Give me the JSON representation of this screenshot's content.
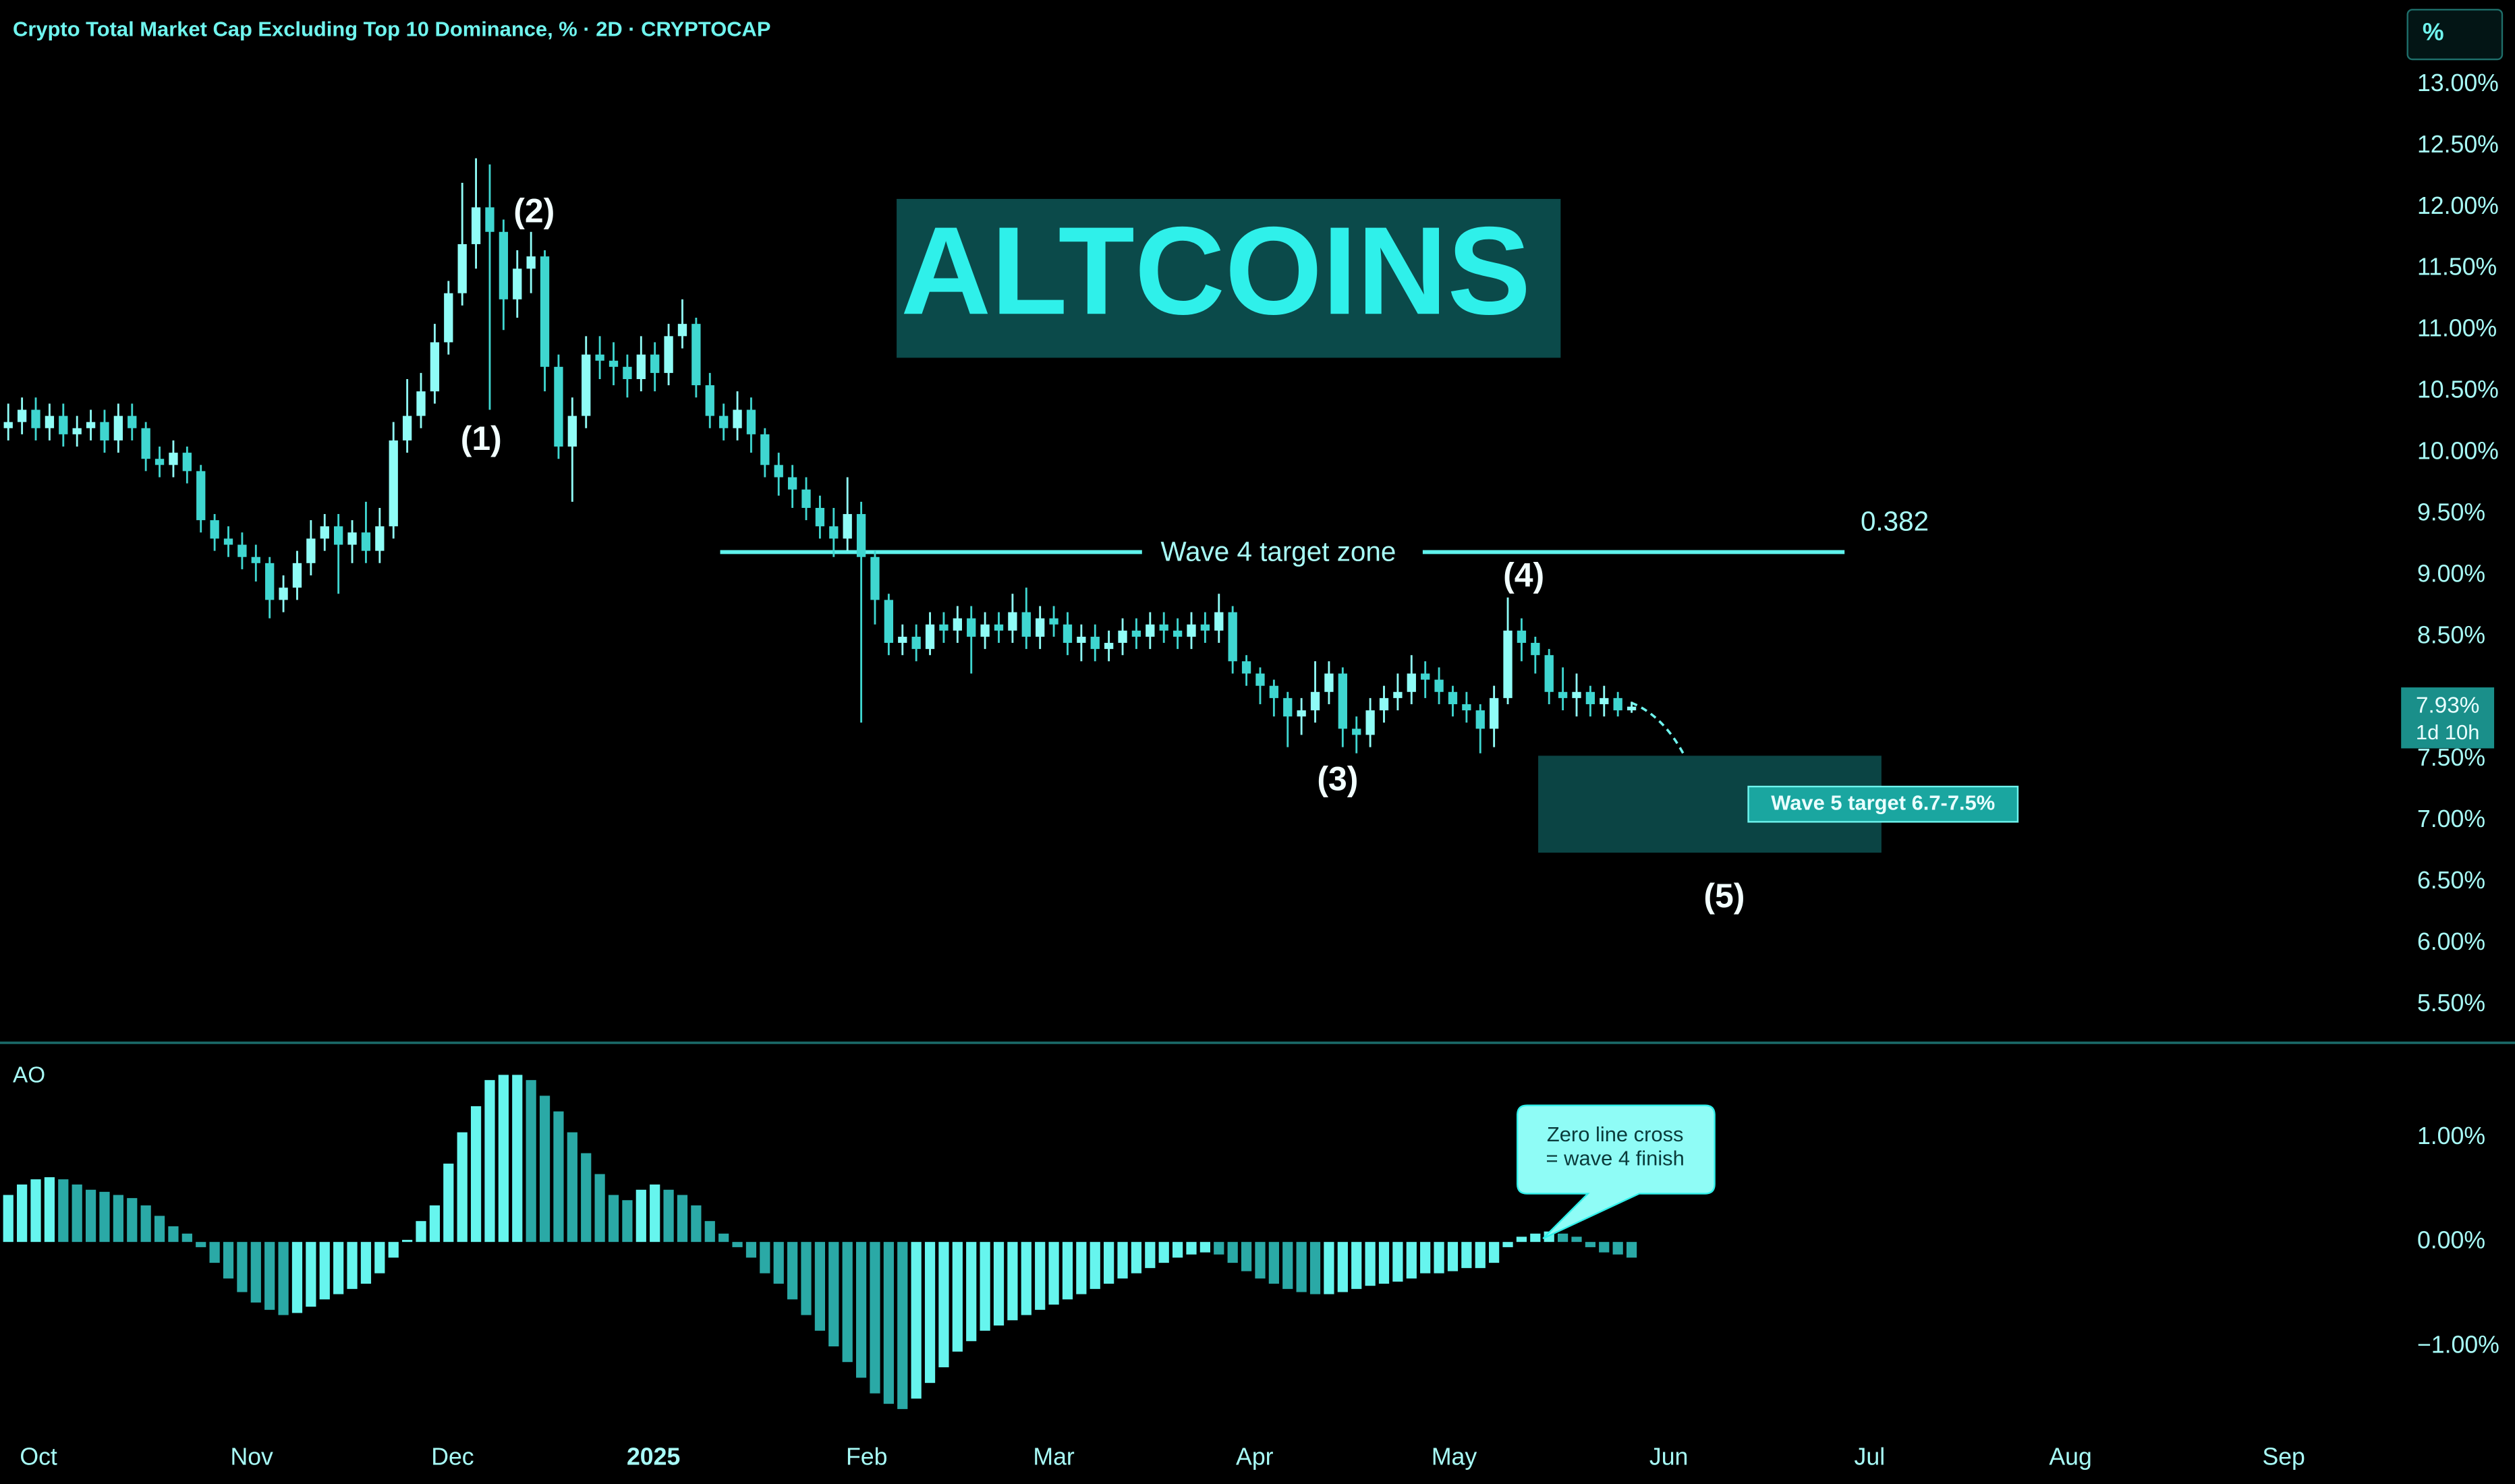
{
  "chart_data": [
    {
      "type": "candlestick",
      "title": "Crypto Total Market Cap Excluding Top 10 Dominance, % · 2D · CRYPTOCAP",
      "axis_unit": "%",
      "open": [
        10.2,
        10.25,
        10.35,
        10.2,
        10.3,
        10.15,
        10.2,
        10.25,
        10.1,
        10.3,
        10.2,
        9.95,
        9.9,
        10.0,
        9.85,
        9.45,
        9.3,
        9.25,
        9.15,
        9.1,
        8.8,
        8.9,
        9.1,
        9.3,
        9.4,
        9.25,
        9.35,
        9.2,
        9.4,
        10.1,
        10.3,
        10.5,
        10.9,
        11.3,
        11.7,
        12.0,
        11.8,
        11.25,
        11.5,
        11.6,
        10.7,
        10.05,
        10.3,
        10.8,
        10.75,
        10.7,
        10.6,
        10.8,
        10.65,
        10.95,
        11.05,
        10.55,
        10.3,
        10.2,
        10.35,
        10.15,
        9.9,
        9.8,
        9.7,
        9.55,
        9.4,
        9.3,
        9.5,
        9.15,
        8.8,
        8.45,
        8.5,
        8.4,
        8.6,
        8.55,
        8.65,
        8.5,
        8.6,
        8.55,
        8.7,
        8.5,
        8.65,
        8.6,
        8.45,
        8.5,
        8.4,
        8.45,
        8.55,
        8.5,
        8.6,
        8.55,
        8.5,
        8.6,
        8.55,
        8.7,
        8.3,
        8.2,
        8.1,
        8.0,
        7.85,
        7.9,
        8.05,
        8.2,
        7.75,
        7.7,
        7.9,
        8.0,
        8.05,
        8.2,
        8.15,
        8.05,
        7.95,
        7.9,
        7.75,
        8.0,
        8.55,
        8.45,
        8.35,
        8.05,
        8.0,
        8.05,
        7.95,
        8.0,
        7.9
      ],
      "high": [
        10.4,
        10.45,
        10.45,
        10.4,
        10.4,
        10.3,
        10.35,
        10.35,
        10.4,
        10.4,
        10.25,
        10.05,
        10.1,
        10.05,
        9.9,
        9.5,
        9.4,
        9.35,
        9.25,
        9.15,
        9.0,
        9.2,
        9.45,
        9.5,
        9.5,
        9.45,
        9.6,
        9.55,
        10.25,
        10.6,
        10.65,
        11.05,
        11.4,
        12.2,
        12.4,
        12.35,
        11.9,
        11.65,
        11.8,
        11.65,
        10.8,
        10.45,
        10.95,
        10.95,
        10.9,
        10.8,
        10.95,
        10.9,
        11.05,
        11.25,
        11.1,
        10.65,
        10.4,
        10.5,
        10.45,
        10.2,
        10.0,
        9.9,
        9.8,
        9.65,
        9.55,
        9.8,
        9.6,
        9.2,
        8.85,
        8.6,
        8.6,
        8.7,
        8.7,
        8.75,
        8.75,
        8.7,
        8.7,
        8.85,
        8.9,
        8.75,
        8.75,
        8.7,
        8.6,
        8.6,
        8.55,
        8.65,
        8.65,
        8.7,
        8.7,
        8.65,
        8.7,
        8.7,
        8.85,
        8.75,
        8.35,
        8.25,
        8.15,
        8.05,
        8.0,
        8.3,
        8.3,
        8.25,
        7.85,
        8.0,
        8.1,
        8.2,
        8.35,
        8.3,
        8.25,
        8.1,
        8.05,
        7.95,
        8.1,
        8.82,
        8.65,
        8.5,
        8.4,
        8.25,
        8.2,
        8.1,
        8.1,
        8.05,
        7.97
      ],
      "low": [
        10.1,
        10.15,
        10.1,
        10.1,
        10.05,
        10.05,
        10.1,
        10.0,
        10.0,
        10.1,
        9.85,
        9.8,
        9.8,
        9.75,
        9.35,
        9.2,
        9.15,
        9.05,
        8.95,
        8.65,
        8.7,
        8.8,
        9.0,
        9.2,
        8.85,
        9.1,
        9.1,
        9.1,
        9.3,
        10.0,
        10.2,
        10.4,
        10.8,
        11.2,
        11.5,
        10.35,
        11.0,
        11.1,
        11.3,
        10.5,
        9.95,
        9.6,
        10.2,
        10.6,
        10.55,
        10.45,
        10.5,
        10.5,
        10.55,
        10.85,
        10.45,
        10.2,
        10.1,
        10.1,
        10.0,
        9.8,
        9.65,
        9.55,
        9.45,
        9.3,
        9.15,
        9.2,
        7.8,
        8.6,
        8.35,
        8.35,
        8.3,
        8.35,
        8.45,
        8.45,
        8.2,
        8.4,
        8.45,
        8.45,
        8.4,
        8.4,
        8.5,
        8.35,
        8.3,
        8.3,
        8.3,
        8.35,
        8.4,
        8.4,
        8.45,
        8.4,
        8.4,
        8.45,
        8.45,
        8.2,
        8.1,
        7.95,
        7.85,
        7.6,
        7.7,
        7.8,
        7.95,
        7.6,
        7.55,
        7.6,
        7.8,
        7.9,
        7.95,
        8.0,
        7.95,
        7.85,
        7.8,
        7.55,
        7.6,
        7.95,
        8.3,
        8.2,
        7.95,
        7.9,
        7.85,
        7.85,
        7.85,
        7.85,
        7.88
      ],
      "close": [
        10.25,
        10.35,
        10.2,
        10.3,
        10.15,
        10.2,
        10.25,
        10.1,
        10.3,
        10.2,
        9.95,
        9.9,
        10.0,
        9.85,
        9.45,
        9.3,
        9.25,
        9.15,
        9.1,
        8.8,
        8.9,
        9.1,
        9.3,
        9.4,
        9.25,
        9.35,
        9.2,
        9.4,
        10.1,
        10.3,
        10.5,
        10.9,
        11.3,
        11.7,
        12.0,
        11.8,
        11.25,
        11.5,
        11.6,
        10.7,
        10.05,
        10.3,
        10.8,
        10.75,
        10.7,
        10.6,
        10.8,
        10.65,
        10.95,
        11.05,
        10.55,
        10.3,
        10.2,
        10.35,
        10.15,
        9.9,
        9.8,
        9.7,
        9.55,
        9.4,
        9.3,
        9.5,
        9.15,
        8.8,
        8.45,
        8.5,
        8.4,
        8.6,
        8.55,
        8.65,
        8.5,
        8.6,
        8.55,
        8.7,
        8.5,
        8.65,
        8.6,
        8.45,
        8.5,
        8.4,
        8.45,
        8.55,
        8.5,
        8.6,
        8.55,
        8.5,
        8.6,
        8.55,
        8.7,
        8.3,
        8.2,
        8.1,
        8.0,
        7.85,
        7.9,
        8.05,
        8.2,
        7.75,
        7.7,
        7.9,
        8.0,
        8.05,
        8.2,
        8.15,
        8.05,
        7.95,
        7.9,
        7.75,
        8.0,
        8.55,
        8.45,
        8.35,
        8.05,
        8.0,
        8.05,
        7.95,
        8.0,
        7.9,
        7.93
      ],
      "up_color": "#8ffcf6",
      "down_color": "#3fd6d0",
      "xlim": [
        -0.6,
        173.7
      ],
      "ylim": [
        5.19,
        13.69
      ],
      "yticks": [
        {
          "value": 5.5,
          "label": "5.50%"
        },
        {
          "value": 6,
          "label": "6.00%"
        },
        {
          "value": 6.5,
          "label": "6.50%"
        },
        {
          "value": 7,
          "label": "7.00%"
        },
        {
          "value": 7.5,
          "label": "7.50%"
        },
        {
          "value": 8.5,
          "label": "8.50%"
        },
        {
          "value": 9,
          "label": "9.00%"
        },
        {
          "value": 9.5,
          "label": "9.50%"
        },
        {
          "value": 10,
          "label": "10.00%"
        },
        {
          "value": 10.5,
          "label": "10.50%"
        },
        {
          "value": 11,
          "label": "11.00%"
        },
        {
          "value": 11.5,
          "label": "11.50%"
        },
        {
          "value": 12,
          "label": "12.00%"
        },
        {
          "value": 12.5,
          "label": "12.50%"
        },
        {
          "value": 13,
          "label": "13.00%"
        }
      ],
      "price_label": {
        "value": 7.93,
        "label": "7.93%"
      },
      "countdown": "1d 10h",
      "headline": "ALTCOINS",
      "wave_labels": [
        "(1)",
        "(2)",
        "(3)",
        "(4)",
        "(5)"
      ],
      "fib_level": 9.19,
      "fib_label": "0.382",
      "zone_label": "Wave 4 target zone",
      "target_range": [
        6.74,
        7.53
      ],
      "target_label": "Wave 5 target 6.7-7.5%"
    },
    {
      "type": "bar",
      "title": "AO",
      "values": [
        0.45,
        0.55,
        0.6,
        0.62,
        0.6,
        0.55,
        0.5,
        0.48,
        0.45,
        0.42,
        0.35,
        0.25,
        0.15,
        0.08,
        -0.05,
        -0.2,
        -0.35,
        -0.48,
        -0.58,
        -0.65,
        -0.7,
        -0.68,
        -0.62,
        -0.55,
        -0.5,
        -0.45,
        -0.4,
        -0.3,
        -0.15,
        0.02,
        0.2,
        0.35,
        0.75,
        1.05,
        1.3,
        1.55,
        1.6,
        1.6,
        1.55,
        1.4,
        1.25,
        1.05,
        0.85,
        0.65,
        0.45,
        0.4,
        0.5,
        0.55,
        0.5,
        0.45,
        0.35,
        0.2,
        0.08,
        -0.05,
        -0.15,
        -0.3,
        -0.4,
        -0.55,
        -0.7,
        -0.85,
        -1.0,
        -1.15,
        -1.3,
        -1.45,
        -1.55,
        -1.6,
        -1.5,
        -1.35,
        -1.2,
        -1.05,
        -0.95,
        -0.85,
        -0.8,
        -0.75,
        -0.7,
        -0.65,
        -0.6,
        -0.55,
        -0.5,
        -0.45,
        -0.4,
        -0.35,
        -0.3,
        -0.25,
        -0.2,
        -0.15,
        -0.12,
        -0.1,
        -0.12,
        -0.2,
        -0.28,
        -0.35,
        -0.4,
        -0.45,
        -0.48,
        -0.5,
        -0.5,
        -0.48,
        -0.45,
        -0.42,
        -0.4,
        -0.38,
        -0.35,
        -0.3,
        -0.3,
        -0.28,
        -0.25,
        -0.25,
        -0.2,
        -0.05,
        0.05,
        0.08,
        0.1,
        0.08,
        0.05,
        -0.05,
        -0.1,
        -0.12,
        -0.15
      ],
      "rising_color": "#66f5ee",
      "falling_color": "#2aa9a6",
      "xlim": [
        -0.6,
        173.7
      ],
      "ylim": [
        -1.78,
        1.83
      ],
      "yticks": [
        {
          "value": -1,
          "label": "−1.00%"
        },
        {
          "value": 0,
          "label": "0.00%"
        },
        {
          "value": 1,
          "label": "1.00%"
        }
      ],
      "xticks": [
        {
          "value": 2.2,
          "label": "Oct"
        },
        {
          "value": 17.7,
          "label": "Nov"
        },
        {
          "value": 32.3,
          "label": "Dec"
        },
        {
          "value": 46.9,
          "label": "2025"
        },
        {
          "value": 62.4,
          "label": "Feb"
        },
        {
          "value": 76.0,
          "label": "Mar"
        },
        {
          "value": 90.6,
          "label": "Apr"
        },
        {
          "value": 105.1,
          "label": "May"
        },
        {
          "value": 120.7,
          "label": "Jun"
        },
        {
          "value": 135.3,
          "label": "Jul"
        },
        {
          "value": 149.9,
          "label": "Aug"
        },
        {
          "value": 165.4,
          "label": "Sep"
        }
      ],
      "callout_lines": [
        "Zero line cross",
        "= wave 4 finish"
      ]
    }
  ]
}
